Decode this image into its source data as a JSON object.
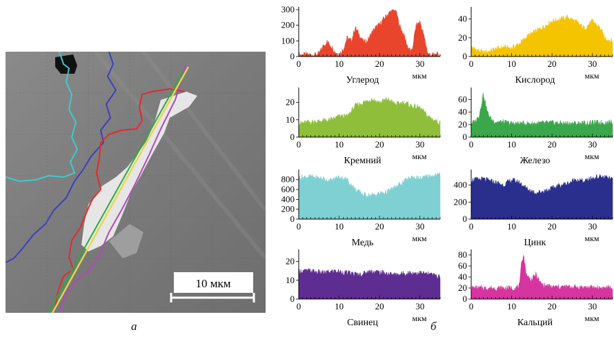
{
  "panel_labels": {
    "left": "а",
    "right": "б"
  },
  "scale_bar": {
    "label": "10 мкм"
  },
  "chart_data": [
    {
      "type": "area",
      "xlabel": "Углерод",
      "xunit": "мкм",
      "xlim": [
        0,
        35
      ],
      "ylim": [
        0,
        300
      ],
      "xticks": [
        0,
        10,
        20,
        30
      ],
      "yticks": [
        0,
        100,
        200,
        300
      ],
      "color": "#e8452c",
      "x": [
        0,
        4,
        5,
        6,
        7,
        8,
        9,
        10,
        11,
        12,
        13,
        14,
        15,
        16,
        17,
        18,
        19,
        20,
        21,
        22,
        23,
        24,
        25,
        26,
        27,
        28,
        29,
        30,
        31,
        32,
        33,
        35
      ],
      "values": [
        12,
        12,
        18,
        65,
        95,
        70,
        30,
        15,
        45,
        120,
        100,
        185,
        140,
        95,
        100,
        150,
        185,
        205,
        240,
        270,
        295,
        300,
        195,
        140,
        60,
        30,
        195,
        225,
        130,
        15,
        12,
        12
      ]
    },
    {
      "type": "area",
      "xlabel": "Кислород",
      "xunit": "мкм",
      "xlim": [
        0,
        35
      ],
      "ylim": [
        0,
        50
      ],
      "xticks": [
        0,
        10,
        20,
        30
      ],
      "yticks": [
        0,
        20,
        40
      ],
      "color": "#f5c400",
      "x": [
        0,
        3,
        6,
        8,
        10,
        12,
        14,
        16,
        18,
        20,
        22,
        24,
        26,
        28,
        30,
        32,
        33,
        35
      ],
      "values": [
        10,
        4,
        8,
        10,
        9,
        14,
        22,
        27,
        32,
        38,
        40,
        42,
        37,
        30,
        38,
        30,
        20,
        16
      ]
    },
    {
      "type": "area",
      "xlabel": "Кремний",
      "xunit": "мкм",
      "xlim": [
        0,
        35
      ],
      "ylim": [
        0,
        27
      ],
      "xticks": [
        0,
        10,
        20,
        30
      ],
      "yticks": [
        0,
        10,
        20
      ],
      "color": "#8fbf3a",
      "x": [
        0,
        4,
        8,
        10,
        12,
        14,
        16,
        18,
        20,
        22,
        24,
        26,
        28,
        30,
        32,
        35
      ],
      "values": [
        8,
        9,
        10,
        12,
        12,
        18,
        20,
        22,
        20,
        22,
        19,
        20,
        18,
        17,
        12,
        8
      ]
    },
    {
      "type": "area",
      "xlabel": "Железо",
      "xunit": "мкм",
      "xlim": [
        0,
        35
      ],
      "ylim": [
        0,
        75
      ],
      "xticks": [
        0,
        10,
        20,
        30
      ],
      "yticks": [
        0,
        20,
        40,
        60
      ],
      "color": "#3aa84a",
      "x": [
        0,
        1,
        2,
        3,
        4,
        5,
        6,
        8,
        10,
        15,
        20,
        25,
        30,
        35
      ],
      "values": [
        22,
        25,
        35,
        70,
        40,
        28,
        25,
        24,
        22,
        22,
        23,
        22,
        23,
        24
      ]
    },
    {
      "type": "area",
      "xlabel": "Медь",
      "xunit": "мкм",
      "xlim": [
        0,
        35
      ],
      "ylim": [
        0,
        950
      ],
      "xticks": [
        0,
        10,
        20,
        30
      ],
      "yticks": [
        0,
        200,
        400,
        600,
        800
      ],
      "color": "#7fd0d2",
      "x": [
        0,
        3,
        6,
        8,
        10,
        12,
        14,
        16,
        18,
        20,
        22,
        24,
        26,
        28,
        30,
        32,
        35
      ],
      "values": [
        850,
        860,
        820,
        780,
        860,
        800,
        600,
        500,
        480,
        520,
        560,
        650,
        760,
        860,
        820,
        870,
        900
      ]
    },
    {
      "type": "area",
      "xlabel": "Цинк",
      "xunit": "мкм",
      "xlim": [
        0,
        35
      ],
      "ylim": [
        0,
        550
      ],
      "xticks": [
        0,
        10,
        20,
        30
      ],
      "yticks": [
        0,
        200,
        400
      ],
      "color": "#2a2e8c",
      "x": [
        0,
        3,
        6,
        8,
        10,
        12,
        14,
        16,
        18,
        20,
        22,
        24,
        26,
        28,
        30,
        32,
        35
      ],
      "values": [
        460,
        470,
        430,
        400,
        460,
        430,
        350,
        310,
        330,
        360,
        400,
        420,
        470,
        440,
        480,
        500,
        470
      ]
    },
    {
      "type": "area",
      "xlabel": "Свинец",
      "xunit": "мкм",
      "xlim": [
        0,
        35
      ],
      "ylim": [
        0,
        25
      ],
      "xticks": [
        0,
        10,
        20,
        30
      ],
      "yticks": [
        0,
        10,
        20
      ],
      "color": "#5e2d91",
      "x": [
        0,
        3,
        6,
        9,
        12,
        15,
        18,
        21,
        24,
        27,
        30,
        33,
        35
      ],
      "values": [
        15,
        15,
        14,
        15,
        14,
        13,
        15,
        14,
        13,
        14,
        14,
        13,
        12
      ]
    },
    {
      "type": "area",
      "xlabel": "Кальций",
      "xunit": "мкм",
      "xlim": [
        0,
        35
      ],
      "ylim": [
        0,
        85
      ],
      "xticks": [
        0,
        10,
        20,
        30
      ],
      "yticks": [
        0,
        20,
        40,
        60,
        80
      ],
      "color": "#d6349e",
      "x": [
        0,
        4,
        8,
        10,
        11,
        12,
        12.5,
        13,
        13.5,
        14,
        15,
        16,
        17,
        18,
        20,
        25,
        30,
        35
      ],
      "values": [
        20,
        20,
        20,
        20,
        20,
        25,
        70,
        80,
        50,
        40,
        35,
        45,
        30,
        25,
        22,
        22,
        21,
        20
      ]
    }
  ]
}
